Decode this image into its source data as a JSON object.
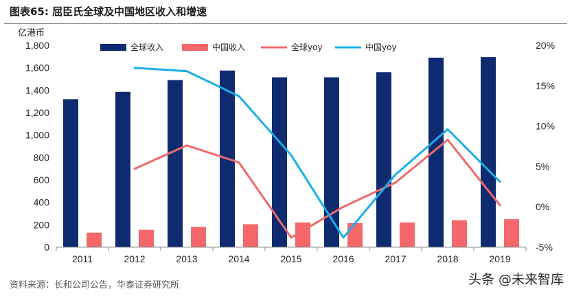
{
  "title": "图表65:   屈臣氏全球及中国地区收入和增速",
  "source": "资料来源：长和公司公告，华泰证券研究所",
  "watermark": "头条 @未来智库",
  "chart_data": {
    "type": "bar",
    "categories": [
      "2011",
      "2012",
      "2013",
      "2014",
      "2015",
      "2016",
      "2017",
      "2018",
      "2019"
    ],
    "y_unit_label": "亿港币",
    "ylim": [
      0,
      1800
    ],
    "y_ticks": [
      "0",
      "200",
      "400",
      "600",
      "800",
      "1,000",
      "1,200",
      "1,400",
      "1,600",
      "1,800"
    ],
    "y2lim": [
      -5,
      20
    ],
    "y2_ticks": [
      "-5%",
      "0%",
      "5%",
      "10%",
      "15%",
      "20%"
    ],
    "legend_position": "top",
    "series": [
      {
        "name": "全球收入",
        "type": "bar",
        "axis": "left",
        "color": "#0e2b70",
        "values": [
          1320,
          1385,
          1490,
          1575,
          1515,
          1515,
          1560,
          1690,
          1695
        ]
      },
      {
        "name": "中国收入",
        "type": "bar",
        "axis": "left",
        "color": "#f4676a",
        "values": [
          130,
          155,
          180,
          205,
          220,
          215,
          220,
          240,
          250
        ]
      },
      {
        "name": "全球yoy",
        "type": "line",
        "axis": "right",
        "color": "#f0686b",
        "values": [
          null,
          4.7,
          7.6,
          5.5,
          -3.8,
          0.0,
          3.0,
          8.3,
          0.2
        ]
      },
      {
        "name": "中国yoy",
        "type": "line",
        "axis": "right",
        "color": "#1aaeea",
        "values": [
          null,
          17.2,
          16.8,
          13.7,
          6.4,
          -3.8,
          4.0,
          9.6,
          3.1
        ]
      }
    ]
  }
}
